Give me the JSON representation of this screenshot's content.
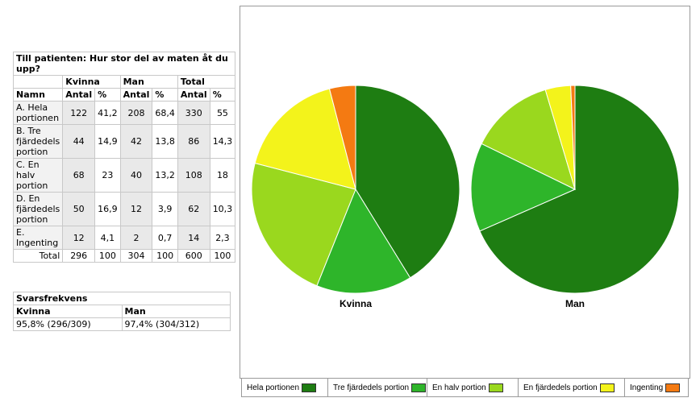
{
  "table": {
    "title": "Till patienten: Hur stor del av maten åt du upp?",
    "groups": [
      "Kvinna",
      "Man",
      "Total"
    ],
    "col_name": "Namn",
    "col_antal": "Antal",
    "col_pct": "%",
    "rows": [
      {
        "name": "A. Hela portionen",
        "k_n": "122",
        "k_p": "41,2",
        "m_n": "208",
        "m_p": "68,4",
        "t_n": "330",
        "t_p": "55"
      },
      {
        "name": "B. Tre fjärdedels portion",
        "k_n": "44",
        "k_p": "14,9",
        "m_n": "42",
        "m_p": "13,8",
        "t_n": "86",
        "t_p": "14,3"
      },
      {
        "name": "C. En halv portion",
        "k_n": "68",
        "k_p": "23",
        "m_n": "40",
        "m_p": "13,2",
        "t_n": "108",
        "t_p": "18"
      },
      {
        "name": "D. En fjärdedels portion",
        "k_n": "50",
        "k_p": "16,9",
        "m_n": "12",
        "m_p": "3,9",
        "t_n": "62",
        "t_p": "10,3"
      },
      {
        "name": "E. Ingenting",
        "k_n": "12",
        "k_p": "4,1",
        "m_n": "2",
        "m_p": "0,7",
        "t_n": "14",
        "t_p": "2,3"
      }
    ],
    "total": {
      "name": "Total",
      "k_n": "296",
      "k_p": "100",
      "m_n": "304",
      "m_p": "100",
      "t_n": "600",
      "t_p": "100"
    }
  },
  "response": {
    "title": "Svarsfrekvens",
    "cols": [
      "Kvinna",
      "Man"
    ],
    "values": [
      "95,8% (296/309)",
      "97,4% (304/312)"
    ]
  },
  "chart_data": {
    "type": "pie",
    "categories": [
      "Hela portionen",
      "Tre fjärdedels portion",
      "En halv portion",
      "En fjärdedels portion",
      "Ingenting"
    ],
    "colors": [
      "#1e7d12",
      "#2eb52a",
      "#9ad81e",
      "#f3f31b",
      "#f47a12"
    ],
    "series": [
      {
        "name": "Kvinna",
        "values": [
          122,
          44,
          68,
          50,
          12
        ]
      },
      {
        "name": "Man",
        "values": [
          208,
          42,
          40,
          12,
          2
        ]
      }
    ],
    "legend": "bottom"
  }
}
